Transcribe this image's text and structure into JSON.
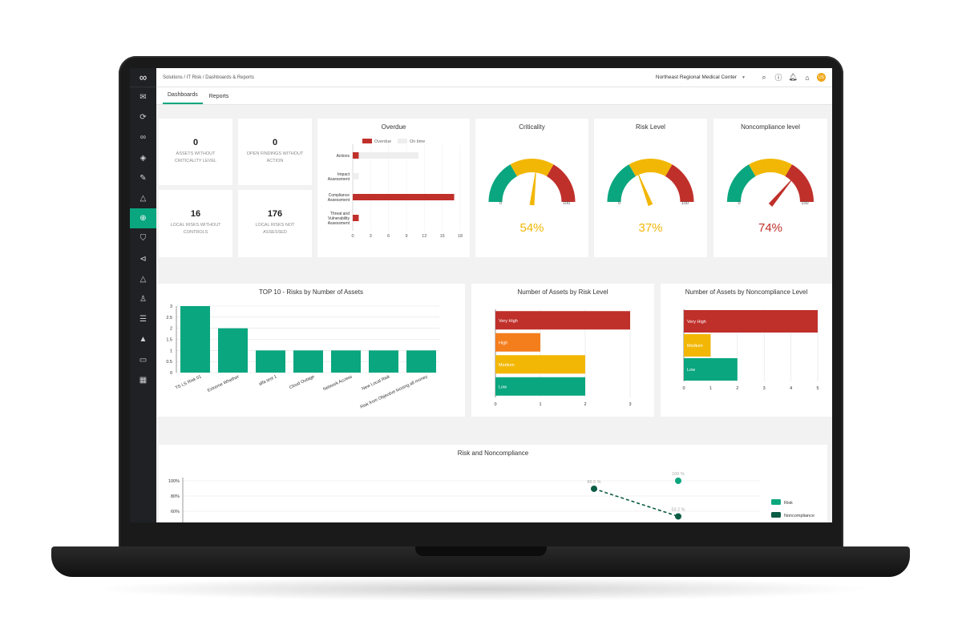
{
  "topbar": {
    "breadcrumb": "Solutions  /  IT Risk  /  Dashboards & Reports",
    "organization": "Northeast Regional Medical Center",
    "user_initials": "US"
  },
  "tabs": [
    {
      "label": "Dashboards",
      "active": true
    },
    {
      "label": "Reports",
      "active": false
    }
  ],
  "stats": [
    {
      "value": "0",
      "label": "ASSETS WITHOUT CRITICALITY LEVEL"
    },
    {
      "value": "0",
      "label": "OPEN FINDINGS WITHOUT ACTION"
    },
    {
      "value": "16",
      "label": "LOCAL RISKS WITHOUT CONTROLS"
    },
    {
      "value": "176",
      "label": "LOCAL RISKS NOT ASSESSED"
    }
  ],
  "overdue_chart": {
    "title": "Overdue",
    "legend": [
      "Overdue",
      "On time"
    ],
    "categories": [
      "Actions",
      "Impact Assessment",
      "Compliance Assessment",
      "Threat and Vulnerability Assessment"
    ],
    "overdue": [
      1,
      0,
      17,
      1
    ],
    "on_time": [
      10,
      1,
      0,
      0
    ],
    "ticks": [
      "0",
      "3",
      "6",
      "9",
      "12",
      "15",
      "18"
    ],
    "xlim": [
      0,
      18
    ]
  },
  "gauges": [
    {
      "title": "Criticality",
      "value": 54,
      "display": "54%",
      "color": "#f2b705",
      "min_label": "0",
      "max_label": "100"
    },
    {
      "title": "Risk Level",
      "value": 37,
      "display": "37%",
      "color": "#f2b705",
      "min_label": "0",
      "max_label": "100"
    },
    {
      "title": "Noncompliance level",
      "value": 74,
      "display": "74%",
      "color": "#c0302b",
      "min_label": "0",
      "max_label": "100"
    }
  ],
  "colors": {
    "green": "#0aa67f",
    "yellow": "#f2b705",
    "orange": "#f47d1c",
    "red": "#c0302b",
    "dark_green": "#0b5c45"
  },
  "chart_data": [
    {
      "type": "bar",
      "title": "TOP 10 - Risks by Number of Assets",
      "categories": [
        "TS LS Risk 01",
        "Extreme Whether",
        "alfa test 1",
        "Cloud Outage",
        "Network Access",
        "New Local Risk",
        "Risk from Objective loosing all money"
      ],
      "values": [
        3,
        2,
        1,
        1,
        1,
        1,
        1
      ],
      "yticks": [
        "0",
        "0.5",
        "1",
        "1.5",
        "2",
        "2.5",
        "3"
      ],
      "ylim": [
        0,
        3
      ]
    },
    {
      "type": "bar",
      "orientation": "horizontal",
      "title": "Number of Assets by Risk Level",
      "categories": [
        "Very High",
        "High",
        "Medium",
        "Low"
      ],
      "values": [
        3,
        1,
        2,
        2
      ],
      "colors": [
        "#c0302b",
        "#f47d1c",
        "#f2b705",
        "#0aa67f"
      ],
      "xticks": [
        "0",
        "1",
        "2",
        "3"
      ],
      "xlim": [
        0,
        3
      ]
    },
    {
      "type": "bar",
      "orientation": "horizontal",
      "title": "Number of Assets by Noncompliance Level",
      "categories": [
        "Very High",
        "Medium",
        "Low"
      ],
      "values": [
        5,
        1,
        2
      ],
      "colors": [
        "#c0302b",
        "#f2b705",
        "#0aa67f"
      ],
      "xticks": [
        "0",
        "1",
        "2",
        "3",
        "4",
        "5"
      ],
      "xlim": [
        0,
        5
      ]
    },
    {
      "type": "line",
      "title": "Risk and Noncompliance",
      "yticks": [
        "100%",
        "80%",
        "60%"
      ],
      "series": [
        {
          "name": "Risk",
          "points": [
            {
              "y": 100,
              "label": "100 %"
            }
          ]
        },
        {
          "name": "Noncompliance",
          "points": [
            {
              "y": 89.5,
              "label": "89.5 %"
            },
            {
              "y": 53.2,
              "label": "53.2 %"
            }
          ]
        }
      ]
    }
  ]
}
